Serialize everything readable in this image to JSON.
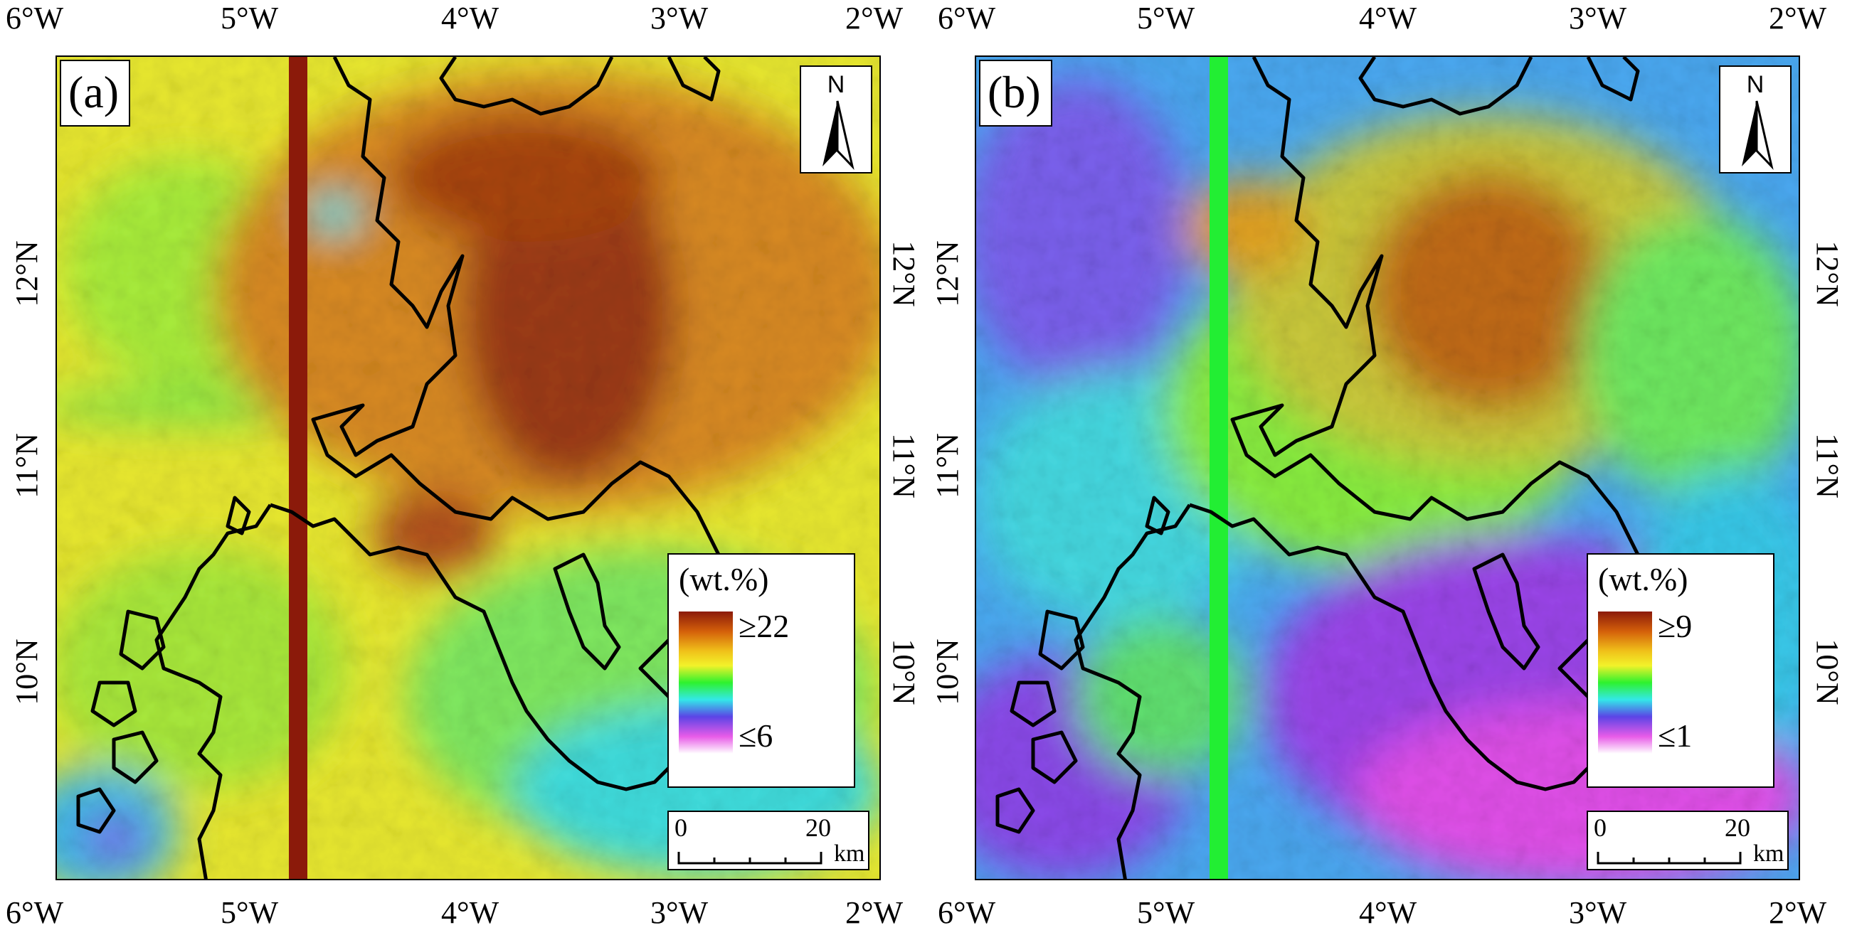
{
  "figure": {
    "longitude_labels": [
      "6°W",
      "5°W",
      "4°W",
      "3°W",
      "2°W"
    ],
    "latitude_labels": [
      "12°N",
      "11°N",
      "10°N"
    ],
    "panels": [
      {
        "label": "(a)",
        "north_arrow": "N",
        "legend": {
          "title": "(wt.%)",
          "max_label": "≥22",
          "min_label": "≤6",
          "colormap": [
            "#8b1a0a",
            "#d4600a",
            "#f0c21a",
            "#f2f22a",
            "#2ef22e",
            "#33e8e8",
            "#5b44e6",
            "#e85ce8",
            "#ffffff"
          ]
        },
        "scale_bar": {
          "zero": "0",
          "length": "20",
          "unit": "km"
        },
        "swath_color": "#8b1a0a",
        "colors": {
          "west": "#e8e830",
          "east": "#d88a20",
          "dark": "#9c3a12",
          "south": "#7fe860",
          "cyan": "#40dcdc",
          "violet": "#7a4fe8"
        }
      },
      {
        "label": "(b)",
        "north_arrow": "N",
        "legend": {
          "title": "(wt.%)",
          "max_label": "≥9",
          "min_label": "≤1",
          "colormap": [
            "#8b1a0a",
            "#d4600a",
            "#f0c21a",
            "#f2f22a",
            "#2ef22e",
            "#33e8e8",
            "#5b44e6",
            "#e85ce8",
            "#ffffff"
          ]
        },
        "scale_bar": {
          "zero": "0",
          "length": "20",
          "unit": "km"
        },
        "swath_color": "#22ee33",
        "colors": {
          "west": "#4aa8f0",
          "east": "#c9c83a",
          "dark": "#c04a10",
          "south": "#9a44e8",
          "cyan": "#38e0d0",
          "violet": "#e050e8"
        }
      }
    ]
  }
}
